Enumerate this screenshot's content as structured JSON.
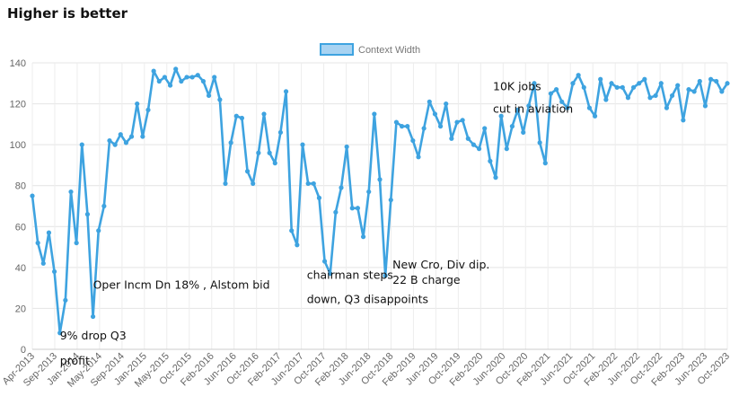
{
  "heading": "Higher is better",
  "chart_data": {
    "type": "line",
    "title": "",
    "xlabel": "",
    "ylabel": "",
    "ylim": [
      0,
      140
    ],
    "yticks": [
      0,
      20,
      40,
      60,
      80,
      100,
      120,
      140
    ],
    "grid": true,
    "legend_position": "top-center",
    "series_color": "#3ea3e0",
    "legend_fill": "#a8d3f2",
    "xtick_labels": [
      "Apr-2013",
      "Sep-2013",
      "Jan-2014",
      "May-2014",
      "Sep-2014",
      "Jan-2015",
      "May-2015",
      "Oct-2015",
      "Feb-2016",
      "Jun-2016",
      "Oct-2016",
      "Feb-2017",
      "Jun-2017",
      "Oct-2017",
      "Feb-2018",
      "Jun-2018",
      "Oct-2018",
      "Feb-2019",
      "Jun-2019",
      "Oct-2019",
      "Feb-2020",
      "Jun-2020",
      "Oct-2020",
      "Feb-2021",
      "Jun-2021",
      "Oct-2021",
      "Feb-2022",
      "Jun-2022",
      "Oct-2022",
      "Feb-2023",
      "Jun-2023",
      "Oct-2023"
    ],
    "series": [
      {
        "name": "Context Width",
        "values": [
          75,
          52,
          42,
          57,
          38,
          8,
          24,
          77,
          52,
          100,
          66,
          16,
          58,
          70,
          102,
          100,
          105,
          101,
          104,
          120,
          104,
          117,
          136,
          131,
          133,
          129,
          137,
          131,
          133,
          133,
          134,
          131,
          124,
          133,
          122,
          81,
          101,
          114,
          113,
          87,
          81,
          96,
          115,
          96,
          91,
          106,
          126,
          58,
          51,
          100,
          81,
          81,
          74,
          43,
          37,
          67,
          79,
          99,
          69,
          69,
          55,
          77,
          115,
          83,
          36,
          73,
          111,
          109,
          109,
          102,
          94,
          108,
          121,
          115,
          109,
          120,
          103,
          111,
          112,
          103,
          100,
          98,
          108,
          92,
          84,
          114,
          98,
          109,
          117,
          106,
          119,
          130,
          101,
          91,
          125,
          127,
          121,
          118,
          130,
          134,
          128,
          118,
          114,
          132,
          122,
          130,
          128,
          128,
          123,
          128,
          130,
          132,
          123,
          124,
          130,
          118,
          124,
          129,
          112,
          127,
          126,
          131,
          119,
          132,
          131,
          126,
          130
        ]
      }
    ],
    "annotations": [
      {
        "lines": [
          "9% drop Q3",
          "profit"
        ],
        "index": 5,
        "value": 8
      },
      {
        "lines": [
          "Oper Incm Dn 18% , Alstom bid"
        ],
        "index": 11,
        "value": 16
      },
      {
        "lines": [
          "chairman steps",
          "down, Q3 disappoints"
        ],
        "index": 54,
        "value": 37
      },
      {
        "lines": [
          "New Cro, Div dip.",
          "22 B charge"
        ],
        "index": 64,
        "value": 36
      },
      {
        "lines": [
          "10K jobs",
          "cut in aviation"
        ],
        "index": 84,
        "value": 84
      }
    ]
  }
}
